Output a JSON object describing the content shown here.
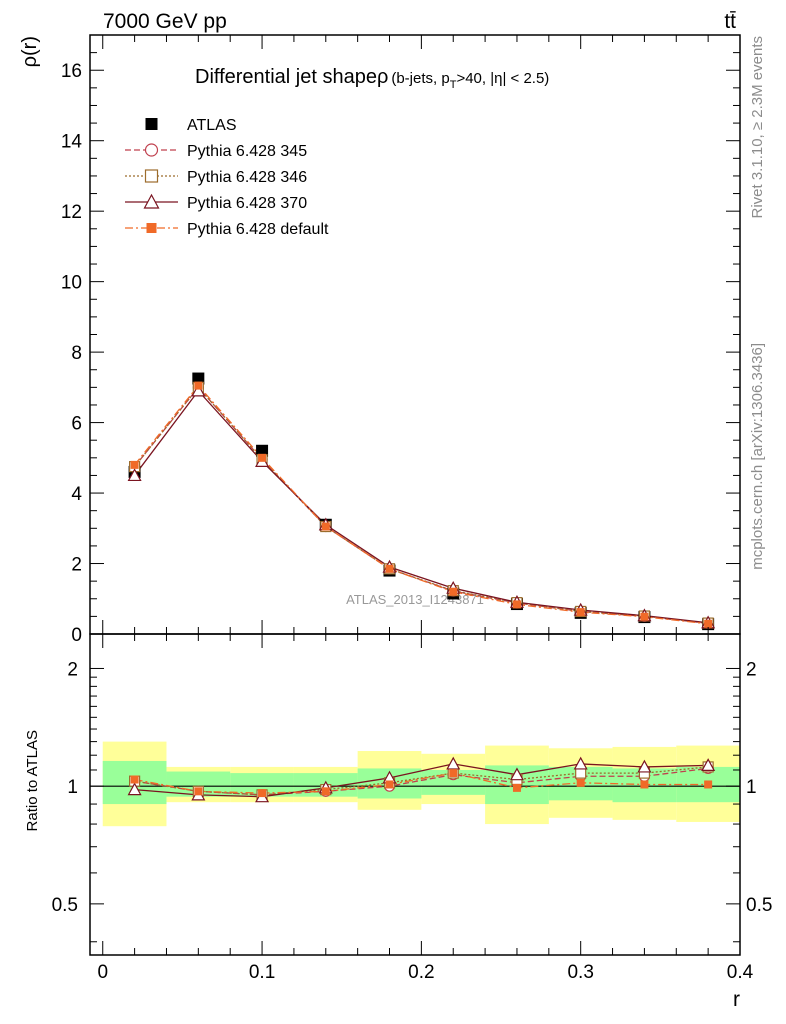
{
  "header": {
    "left": "7000 GeV pp",
    "right": "tt̄"
  },
  "side_labels": {
    "top": "Rivet 3.1.10, ≥ 2.3M events",
    "bottom": "mcplots.cern.ch [arXiv:1306.3436]"
  },
  "watermark": "ATLAS_2013_I1243871",
  "chart_data": {
    "type": "line",
    "title_main": "Differential jet shapeρ",
    "title_sub": "(b-jets, p",
    "title_sub_index": "T",
    "title_sub_rest": ">40, |η| < 2.5)",
    "ylabel": "ρ(r)",
    "xlabel": "r",
    "ratio_ylabel": "Ratio to ATLAS",
    "xlim": [
      -0.008,
      0.4
    ],
    "ylim": [
      0,
      17
    ],
    "ratio_ylim": [
      0.37,
      2.45
    ],
    "ratio_scale": "log",
    "x_ticks": [
      "0",
      "0.1",
      "0.2",
      "0.3",
      "0.4"
    ],
    "y_ticks": [
      "0",
      "2",
      "4",
      "6",
      "8",
      "10",
      "12",
      "14",
      "16"
    ],
    "ratio_ticks": [
      "0.5",
      "1",
      "2"
    ],
    "legend_position": "top-left",
    "x": [
      0.02,
      0.06,
      0.1,
      0.14,
      0.18,
      0.22,
      0.26,
      0.3,
      0.34,
      0.38
    ],
    "bins": [
      [
        0.0,
        0.04
      ],
      [
        0.04,
        0.08
      ],
      [
        0.08,
        0.12
      ],
      [
        0.12,
        0.16
      ],
      [
        0.16,
        0.2
      ],
      [
        0.2,
        0.24
      ],
      [
        0.24,
        0.28
      ],
      [
        0.28,
        0.32
      ],
      [
        0.32,
        0.36
      ],
      [
        0.36,
        0.4
      ]
    ],
    "data": {
      "name": "ATLAS",
      "values": [
        4.6,
        7.25,
        5.2,
        3.1,
        1.8,
        1.15,
        0.85,
        0.6,
        0.48,
        0.28
      ],
      "band_inner": [
        [
          0.9,
          1.16
        ],
        [
          0.94,
          1.09
        ],
        [
          0.94,
          1.08
        ],
        [
          0.94,
          1.08
        ],
        [
          0.93,
          1.11
        ],
        [
          0.95,
          1.1
        ],
        [
          0.9,
          1.13
        ],
        [
          0.92,
          1.12
        ],
        [
          0.91,
          1.11
        ],
        [
          0.91,
          1.12
        ]
      ],
      "band_outer": [
        [
          0.79,
          1.3
        ],
        [
          0.91,
          1.12
        ],
        [
          0.91,
          1.12
        ],
        [
          0.91,
          1.12
        ],
        [
          0.87,
          1.23
        ],
        [
          0.9,
          1.21
        ],
        [
          0.8,
          1.27
        ],
        [
          0.83,
          1.25
        ],
        [
          0.82,
          1.26
        ],
        [
          0.81,
          1.27
        ]
      ]
    },
    "series": [
      {
        "name": "Pythia 6.428 345",
        "color": "#c0404e",
        "marker": "circle-open",
        "dash": "6,3",
        "values": [
          4.75,
          7.0,
          4.95,
          3.05,
          1.85,
          1.22,
          0.88,
          0.64,
          0.5,
          0.3
        ],
        "ratio": [
          1.03,
          0.97,
          0.95,
          0.97,
          1.0,
          1.07,
          1.02,
          1.06,
          1.06,
          1.11
        ]
      },
      {
        "name": "Pythia 6.428 346",
        "color": "#9c6c2c",
        "marker": "square-open",
        "dash": "2,2",
        "values": [
          4.75,
          7.0,
          4.95,
          3.05,
          1.85,
          1.23,
          0.89,
          0.64,
          0.51,
          0.31
        ],
        "ratio": [
          1.03,
          0.97,
          0.95,
          0.98,
          1.02,
          1.08,
          1.04,
          1.08,
          1.08,
          1.12
        ]
      },
      {
        "name": "Pythia 6.428 370",
        "color": "#7a1420",
        "marker": "triangle-open",
        "dash": "",
        "values": [
          4.5,
          6.9,
          4.9,
          3.1,
          1.9,
          1.3,
          0.9,
          0.68,
          0.52,
          0.32
        ],
        "ratio": [
          0.98,
          0.95,
          0.94,
          0.99,
          1.05,
          1.14,
          1.07,
          1.14,
          1.12,
          1.13
        ]
      },
      {
        "name": "Pythia 6.428 default",
        "color": "#f06a28",
        "marker": "square-filled",
        "dash": "8,3,2,3",
        "values": [
          4.8,
          7.05,
          5.0,
          3.05,
          1.85,
          1.2,
          0.84,
          0.62,
          0.49,
          0.29
        ],
        "ratio": [
          1.04,
          0.97,
          0.96,
          0.97,
          1.01,
          1.08,
          0.99,
          1.02,
          1.01,
          1.01
        ]
      }
    ]
  }
}
